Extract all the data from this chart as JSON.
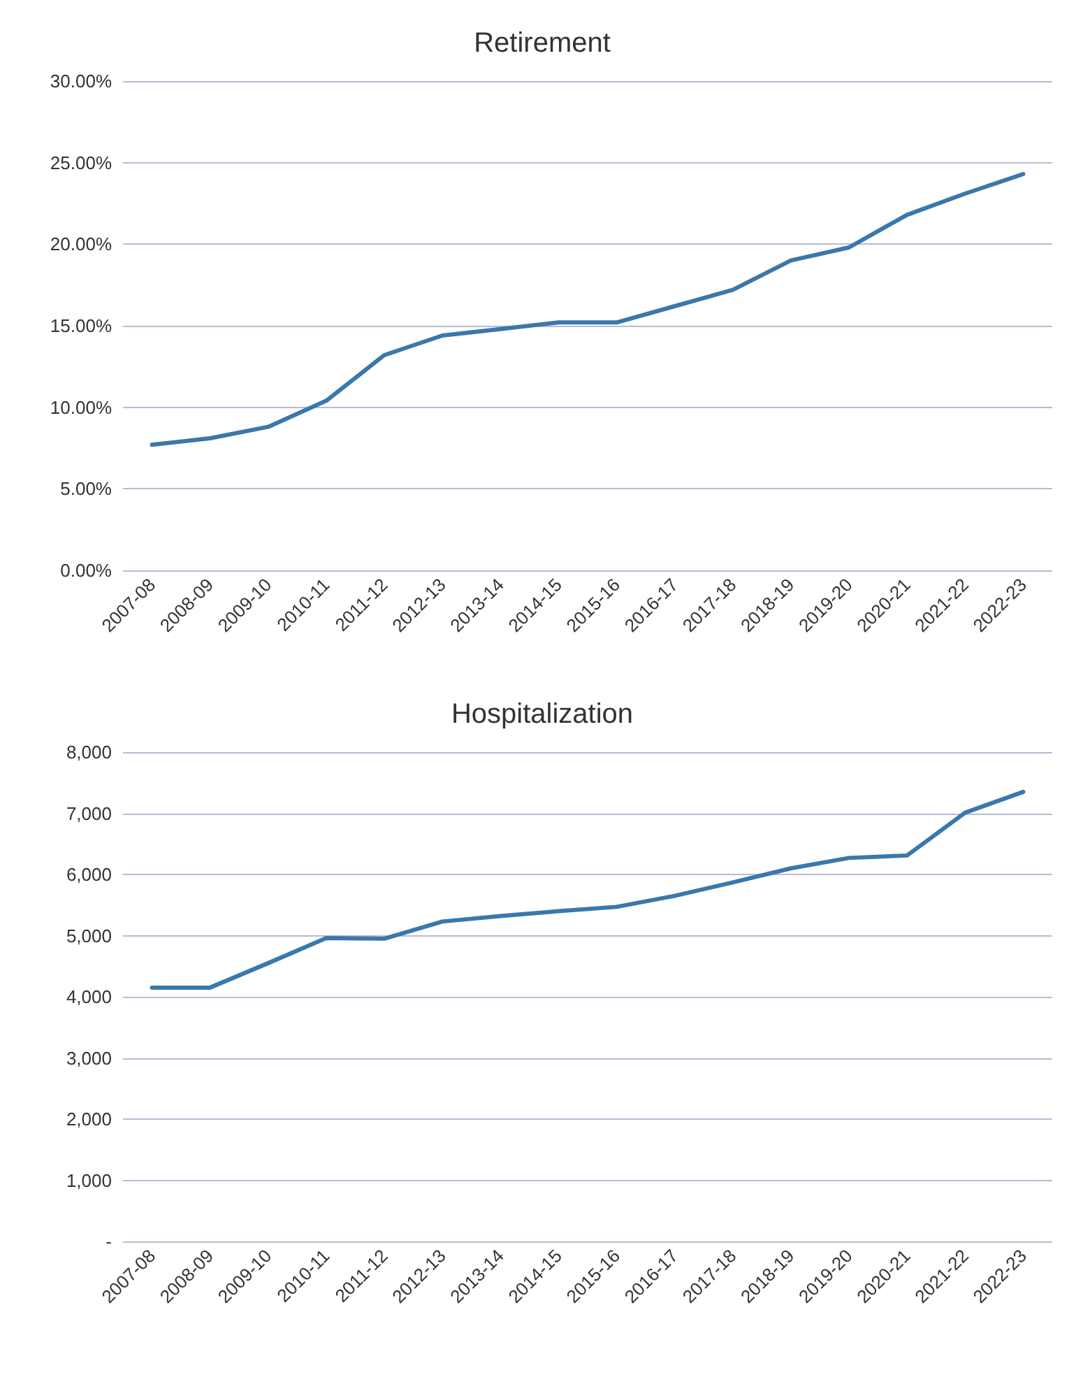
{
  "chart_data": [
    {
      "type": "line",
      "title": "Retirement",
      "categories": [
        "2007-08",
        "2008-09",
        "2009-10",
        "2010-11",
        "2011-12",
        "2012-13",
        "2013-14",
        "2014-15",
        "2015-16",
        "2016-17",
        "2017-18",
        "2018-19",
        "2019-20",
        "2020-21",
        "2021-22",
        "2022-23"
      ],
      "series": [
        {
          "color": "#3a78ab",
          "values": [
            7.7,
            8.1,
            8.8,
            10.4,
            13.2,
            14.4,
            14.8,
            15.2,
            15.2,
            16.2,
            17.2,
            19.0,
            19.8,
            21.8,
            23.1,
            24.3
          ]
        }
      ],
      "ylim": [
        0,
        30
      ],
      "yticks": [
        {
          "value": 0,
          "label": "0.00%"
        },
        {
          "value": 5,
          "label": "5.00%"
        },
        {
          "value": 10,
          "label": "10.00%"
        },
        {
          "value": 15,
          "label": "15.00%"
        },
        {
          "value": 20,
          "label": "20.00%"
        },
        {
          "value": 25,
          "label": "25.00%"
        },
        {
          "value": 30,
          "label": "30.00%"
        }
      ],
      "grid": "y",
      "marker": "none",
      "line_style": "solid"
    },
    {
      "type": "line",
      "title": "Hospitalization",
      "categories": [
        "2007-08",
        "2008-09",
        "2009-10",
        "2010-11",
        "2011-12",
        "2012-13",
        "2013-14",
        "2014-15",
        "2015-16",
        "2016-17",
        "2017-18",
        "2018-19",
        "2019-20",
        "2020-21",
        "2021-22",
        "2022-23"
      ],
      "series": [
        {
          "color": "#3a78ab",
          "values": [
            4150,
            4150,
            4550,
            4960,
            4950,
            5230,
            5320,
            5400,
            5470,
            5650,
            5870,
            6100,
            6270,
            6310,
            7010,
            7350
          ]
        }
      ],
      "ylim": [
        0,
        8000
      ],
      "yticks": [
        {
          "value": 0,
          "label": "-"
        },
        {
          "value": 1000,
          "label": "1,000"
        },
        {
          "value": 2000,
          "label": "2,000"
        },
        {
          "value": 3000,
          "label": "3,000"
        },
        {
          "value": 4000,
          "label": "4,000"
        },
        {
          "value": 5000,
          "label": "5,000"
        },
        {
          "value": 6000,
          "label": "6,000"
        },
        {
          "value": 7000,
          "label": "7,000"
        },
        {
          "value": 8000,
          "label": "8,000"
        }
      ],
      "grid": "y",
      "marker": "none",
      "line_style": "solid"
    }
  ]
}
